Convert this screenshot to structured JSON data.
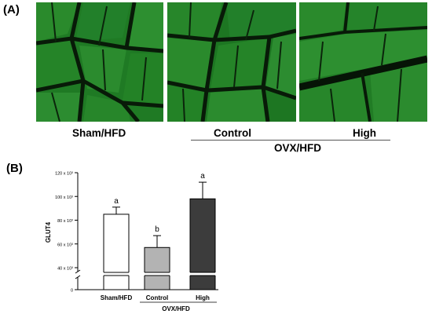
{
  "figure": {
    "panel_a_label": "(A)",
    "panel_b_label": "(B)",
    "image_captions": [
      "Sham/HFD",
      "Control",
      "High"
    ],
    "group_label": "OVX/HFD"
  },
  "colors": {
    "tissue_green": "#1f7a24",
    "bar_sham": "#ffffff",
    "bar_control": "#b3b3b3",
    "bar_high": "#3c3c3c"
  },
  "chart_data": {
    "type": "bar",
    "ylabel": "GLUT4",
    "yticks": [
      "0",
      "40 x 10³",
      "60 x 10³",
      "80 x 10³",
      "100 x 10³",
      "120 x 10³"
    ],
    "ytick_values": [
      0,
      40000,
      60000,
      80000,
      100000,
      120000
    ],
    "ylim": [
      0,
      120000
    ],
    "axis_break": true,
    "categories": [
      "Sham/HFD",
      "Control",
      "High"
    ],
    "values": [
      85000,
      57000,
      98000
    ],
    "errors": [
      6000,
      10000,
      14000
    ],
    "significance": [
      "a",
      "b",
      "a"
    ],
    "group_label": "OVX/HFD"
  }
}
